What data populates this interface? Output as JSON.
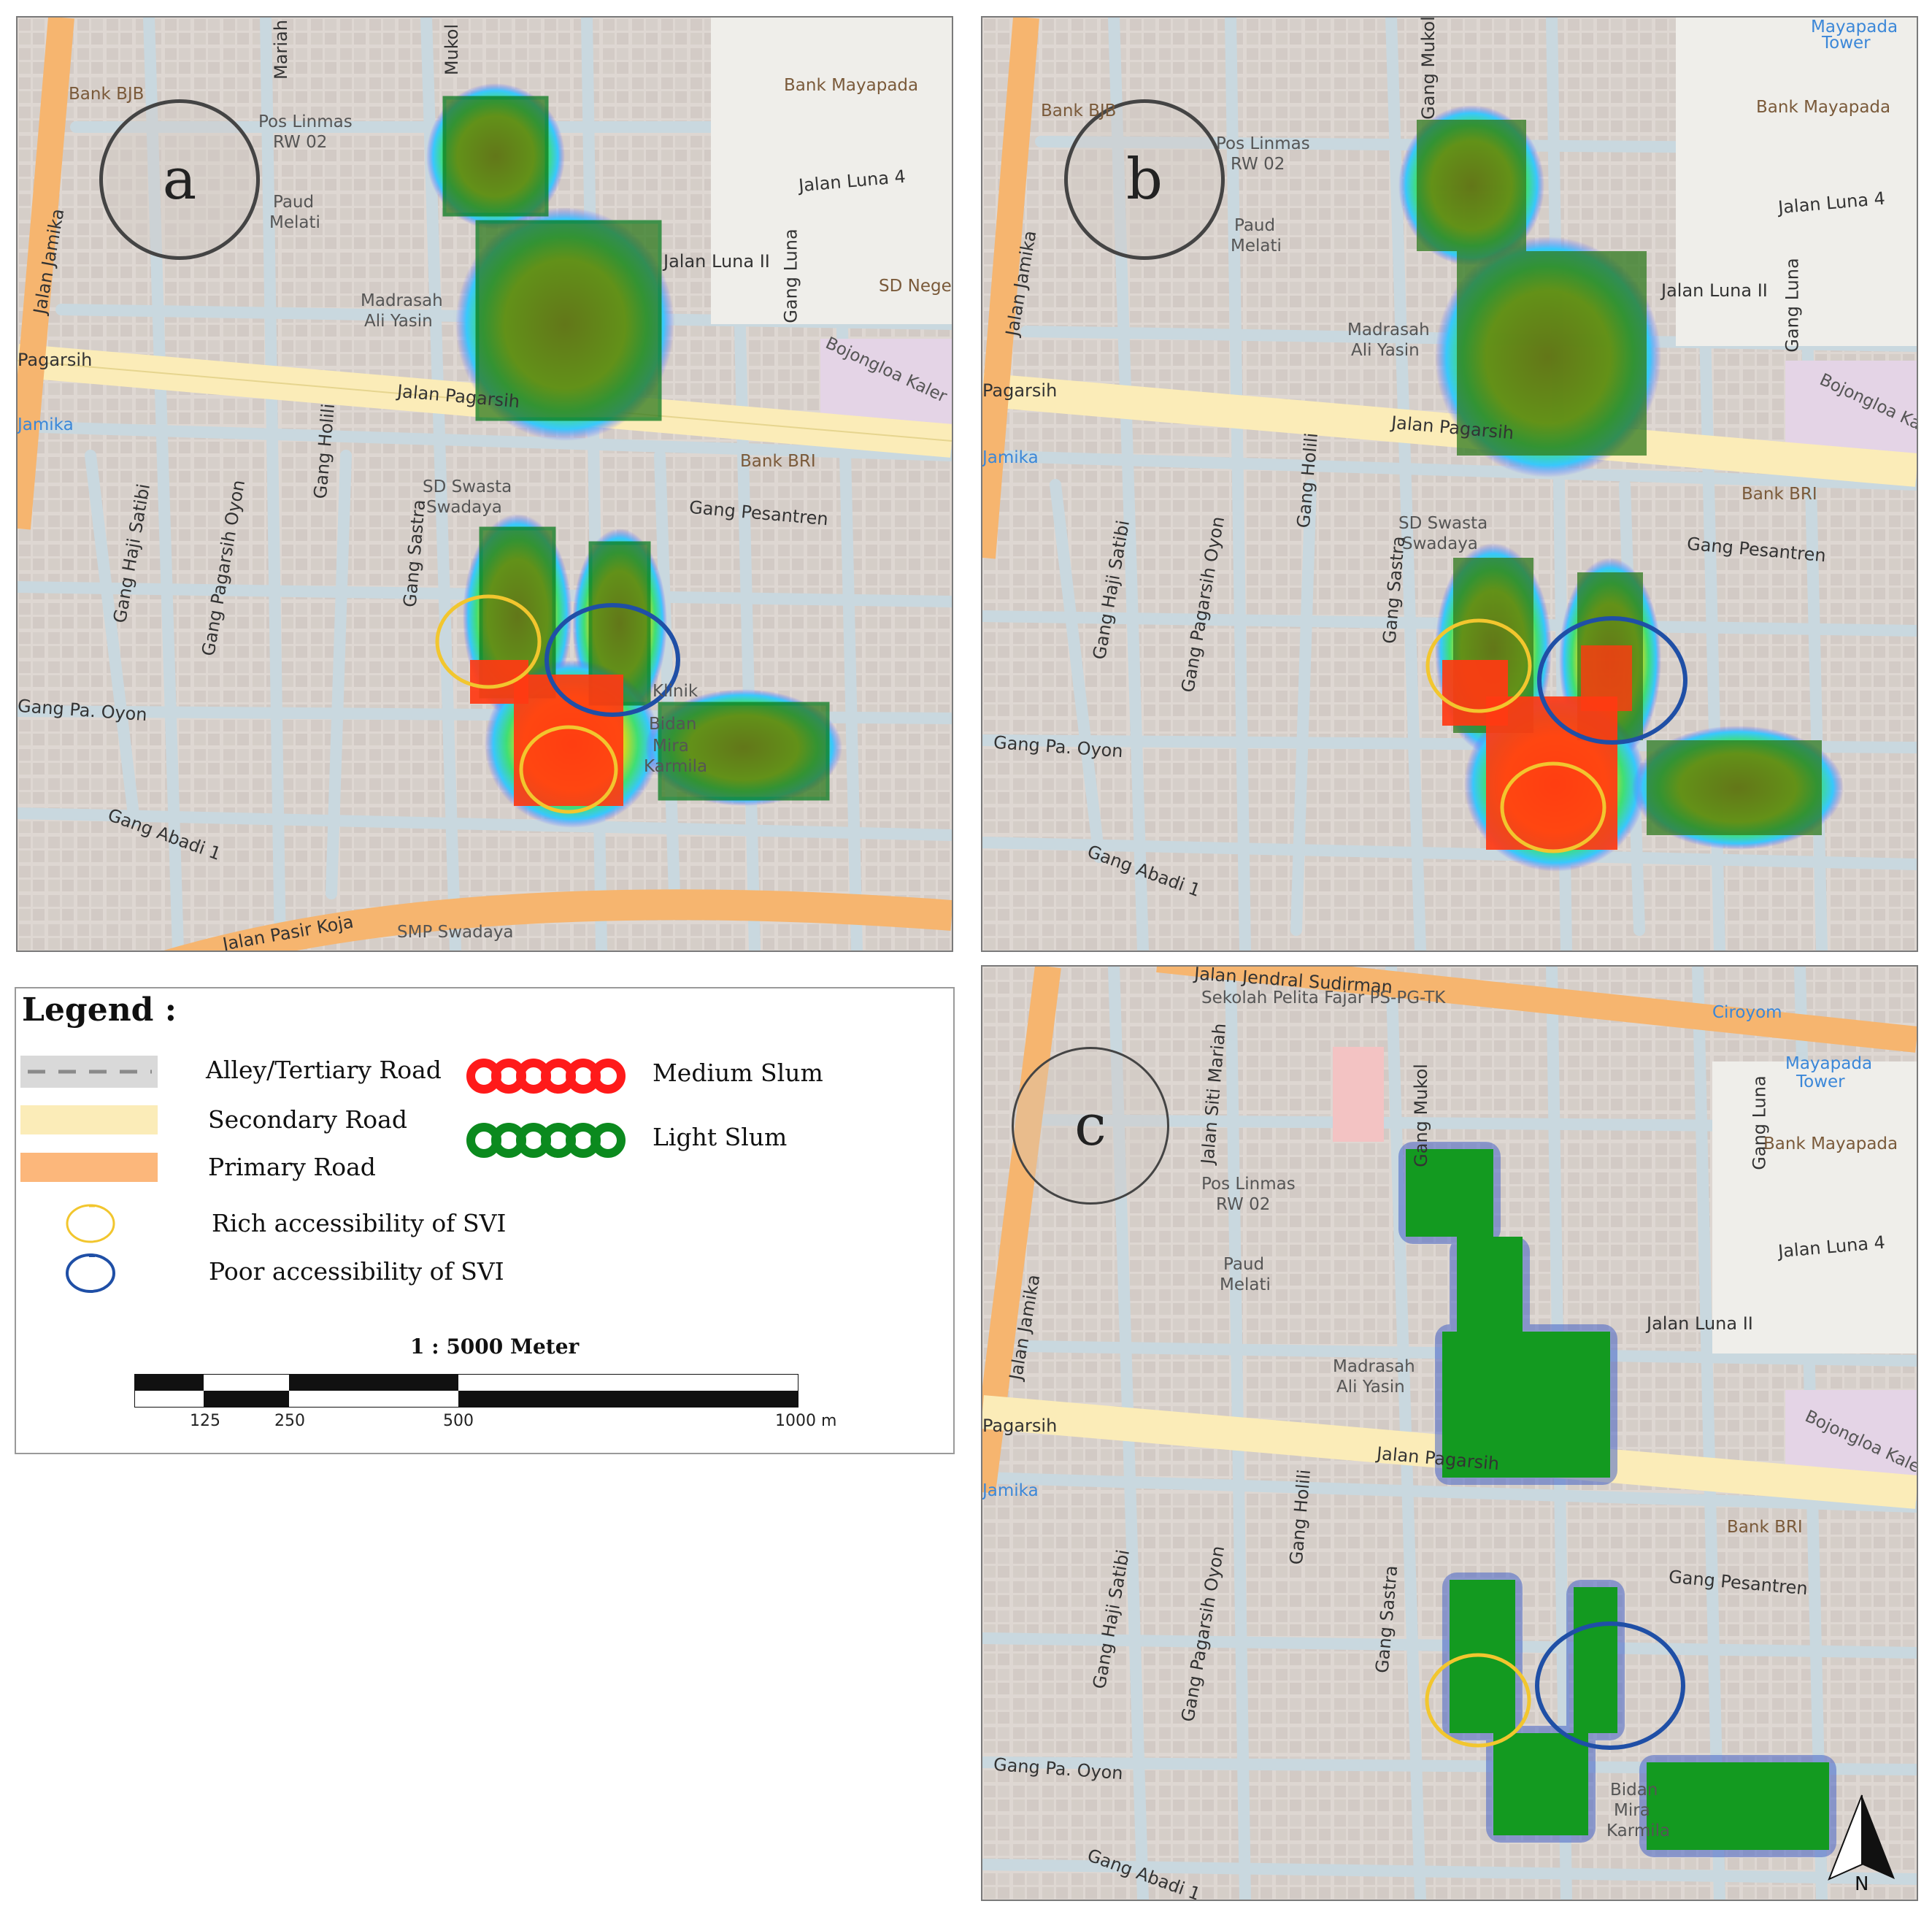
{
  "panels": [
    {
      "label": "a"
    },
    {
      "label": "b"
    },
    {
      "label": "c"
    }
  ],
  "map_labels": {
    "bank_bjb": "Bank BJB",
    "pos_linmas": "Pos Linmas",
    "rw02": "RW 02",
    "paud": "Paud",
    "melati": "Melati",
    "madrasah": "Madrasah",
    "ali_yasin": "Ali Yasin",
    "jalan_jamika": "Jalan Jamika",
    "jalan_luna_4": "Jalan Luna 4",
    "jalan_luna_ii": "Jalan Luna II",
    "gang_luna": "Gang Luna",
    "bank_mayapada": "Bank Mayapada",
    "mayapada": "Mayapada",
    "tower": "Tower",
    "sd_negeri": "SD Negeri",
    "bojongloa_kaler": "Bojongloa Kaler",
    "jalan_pagarsih": "Jalan Pagarsih",
    "pagarsih": "Pagarsih",
    "jamika": "Jamika",
    "bank_bri": "Bank BRI",
    "gang_holili": "Gang Holili",
    "gang_sastra": "Gang Sastra",
    "gang_haji_satibi": "Gang Haji Satibi",
    "gang_pagarsih_oyon": "Gang Pagarsih Oyon",
    "gang_pesantren": "Gang Pesantren",
    "sd_swasta": "SD Swasta",
    "swadaya": "Swadaya",
    "gang_pa_oyon": "Gang Pa. Oyon",
    "gang_abadi": "Gang Abadi 1",
    "jalan_pasir_koja": "Jalan Pasir Koja",
    "smp_swadaya": "SMP Swadaya",
    "gang_mukol": "Gang Mukol",
    "jalan_siti_mariah": "Jalan Siti Mariah",
    "sekolah_pelita": "Sekolah Pelita Fajar PS-PG-TK",
    "jalan_jendral_sudirman": "Jalan Jendral Sudirman",
    "ciroyom": "Ciroyom",
    "mariah": "Mariah",
    "mukol": "Mukol",
    "klinik": "Klinik",
    "bidan": "Bidan",
    "mira": "Mira",
    "karmila": "Karmila"
  },
  "legend": {
    "title": "Legend :",
    "items": [
      {
        "label": "Alley/Tertiary Road",
        "color": "#d9d9d9"
      },
      {
        "label": "Secondary Road",
        "color": "#fbecb8"
      },
      {
        "label": "Primary Road",
        "color": "#fcb77b"
      },
      {
        "label": "Medium Slum",
        "color": "#ff1a1a"
      },
      {
        "label": "Light Slum",
        "color": "#0b8a1e"
      },
      {
        "label": "Rich accessibility of SVI",
        "color": "#f2c62e"
      },
      {
        "label": "Poor accessibility of SVI",
        "color": "#1f4fa6"
      }
    ],
    "scale": {
      "title": "1 : 5000 Meter",
      "ticks": [
        "125",
        "250",
        "500",
        "1000 m"
      ]
    }
  },
  "north_arrow": {
    "label": "N"
  }
}
